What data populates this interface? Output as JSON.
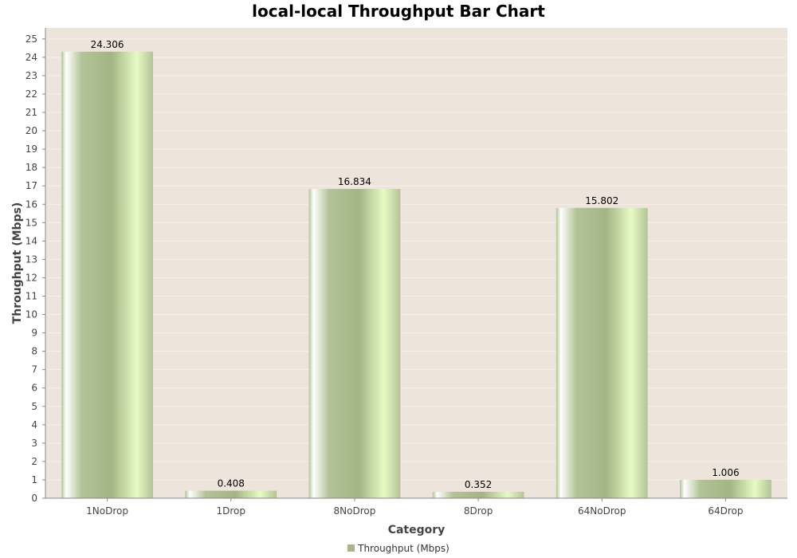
{
  "chart_data": {
    "type": "bar",
    "title": "local-local Throughput Bar Chart",
    "xlabel": "Category",
    "ylabel": "Throughput (Mbps)",
    "categories": [
      "1NoDrop",
      "1Drop",
      "8NoDrop",
      "8Drop",
      "64NoDrop",
      "64Drop"
    ],
    "series": [
      {
        "name": "Throughput (Mbps)",
        "values": [
          24.306,
          0.408,
          16.834,
          0.352,
          15.802,
          1.006
        ],
        "labels": [
          "24.306",
          "0.408",
          "16.834",
          "0.352",
          "15.802",
          "1.006"
        ]
      }
    ],
    "ylim": [
      0,
      25.6
    ],
    "yticks": [
      0,
      1,
      2,
      3,
      4,
      5,
      6,
      7,
      8,
      9,
      10,
      11,
      12,
      13,
      14,
      15,
      16,
      17,
      18,
      19,
      20,
      21,
      22,
      23,
      24,
      25
    ],
    "grid": true,
    "legend_position": "bottom",
    "colors": {
      "plot_background": "#ede5db",
      "gridline": "#f7f1ea",
      "bar_light": "#e6fbc4",
      "bar_mid": "#b3c397",
      "bar_dark": "#a3b585",
      "bar_highlight": "#ffffff",
      "legend_swatch": "#a7b58e",
      "axis_line": "#888888"
    }
  }
}
